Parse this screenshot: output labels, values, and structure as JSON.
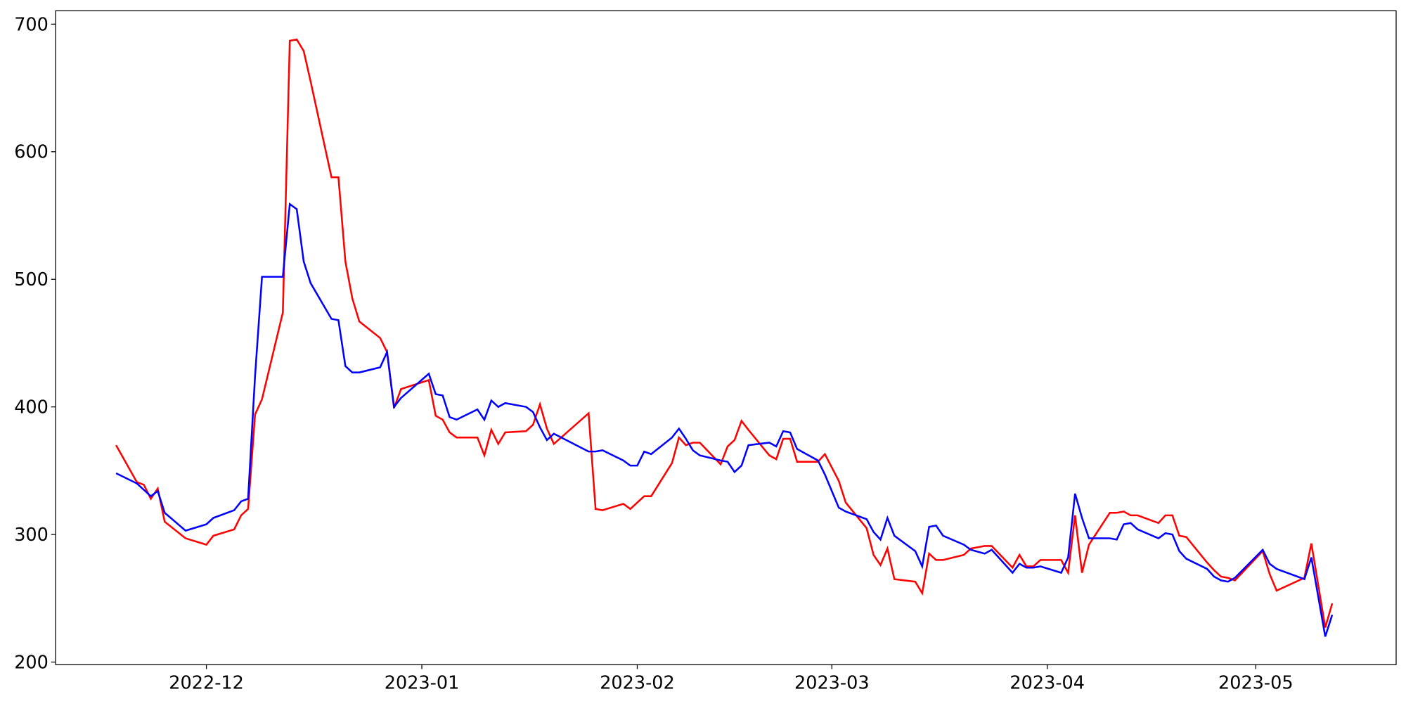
{
  "chart_data": {
    "type": "line",
    "x": [
      -13,
      -10,
      -9,
      -8,
      -7,
      -6,
      -3,
      0,
      1,
      4,
      5,
      6,
      7,
      8,
      11,
      12,
      13,
      14,
      15,
      18,
      19,
      20,
      21,
      22,
      25,
      26,
      27,
      28,
      32,
      33,
      34,
      35,
      36,
      39,
      40,
      41,
      42,
      43,
      46,
      47,
      48,
      49,
      50,
      55,
      56,
      57,
      60,
      61,
      62,
      63,
      64,
      67,
      68,
      69,
      70,
      71,
      74,
      75,
      76,
      77,
      78,
      81,
      82,
      83,
      84,
      85,
      88,
      89,
      91,
      92,
      95,
      96,
      97,
      98,
      99,
      102,
      103,
      104,
      105,
      106,
      109,
      110,
      112,
      113,
      116,
      117,
      118,
      119,
      120,
      123,
      124,
      125,
      126,
      127,
      130,
      131,
      132,
      133,
      134,
      137,
      138,
      139,
      140,
      141,
      144,
      145,
      146,
      147,
      148,
      152,
      153,
      154,
      158,
      159,
      161,
      162
    ],
    "series": [
      {
        "color": "#ff0000",
        "values": [
          370,
          341,
          339,
          328,
          336,
          310,
          297,
          292,
          299,
          304,
          315,
          320,
          394,
          406,
          474,
          687,
          688,
          679,
          655,
          580,
          580,
          514,
          485,
          467,
          454,
          443,
          399,
          414,
          421,
          393,
          390,
          380,
          376,
          376,
          362,
          382,
          371,
          380,
          381,
          386,
          402,
          383,
          371,
          395,
          320,
          319,
          324,
          320,
          325,
          330,
          330,
          356,
          376,
          370,
          372,
          372,
          355,
          369,
          374,
          389,
          382,
          362,
          359,
          375,
          375,
          357,
          357,
          363,
          342,
          325,
          305,
          284,
          276,
          289,
          265,
          263,
          254,
          285,
          280,
          280,
          284,
          289,
          291,
          291,
          274,
          284,
          275,
          275,
          280,
          280,
          270,
          315,
          270,
          292,
          317,
          317,
          318,
          315,
          315,
          309,
          315,
          315,
          299,
          298,
          278,
          272,
          267,
          266,
          264,
          287,
          269,
          256,
          266,
          293,
          227,
          246
        ]
      },
      {
        "color": "#0000ff",
        "values": [
          348,
          340,
          335,
          330,
          334,
          317,
          303,
          308,
          313,
          319,
          326,
          328,
          424,
          502,
          502,
          559,
          555,
          514,
          497,
          469,
          468,
          432,
          427,
          427,
          431,
          443,
          400,
          407,
          426,
          410,
          409,
          392,
          390,
          398,
          390,
          405,
          400,
          403,
          400,
          396,
          384,
          374,
          379,
          365,
          365,
          366,
          358,
          354,
          354,
          365,
          363,
          376,
          383,
          375,
          366,
          362,
          358,
          357,
          349,
          354,
          370,
          372,
          369,
          381,
          380,
          367,
          358,
          347,
          321,
          318,
          312,
          302,
          296,
          313,
          299,
          287,
          275,
          306,
          307,
          299,
          292,
          288,
          285,
          288,
          270,
          277,
          274,
          274,
          275,
          270,
          282,
          332,
          313,
          297,
          297,
          296,
          308,
          309,
          304,
          297,
          301,
          300,
          287,
          281,
          273,
          267,
          264,
          263,
          266,
          288,
          277,
          273,
          265,
          282,
          220,
          237
        ]
      }
    ],
    "xlim": [
      -21.7,
      171.2
    ],
    "xticks": [
      {
        "value": 0,
        "label": "2022-12"
      },
      {
        "value": 31,
        "label": "2023-01"
      },
      {
        "value": 62,
        "label": "2023-02"
      },
      {
        "value": 90,
        "label": "2023-03"
      },
      {
        "value": 121,
        "label": "2023-04"
      },
      {
        "value": 151,
        "label": "2023-05"
      }
    ],
    "ylim": [
      198,
      710.5
    ],
    "yticks": [
      200,
      300,
      400,
      500,
      600,
      700
    ]
  }
}
